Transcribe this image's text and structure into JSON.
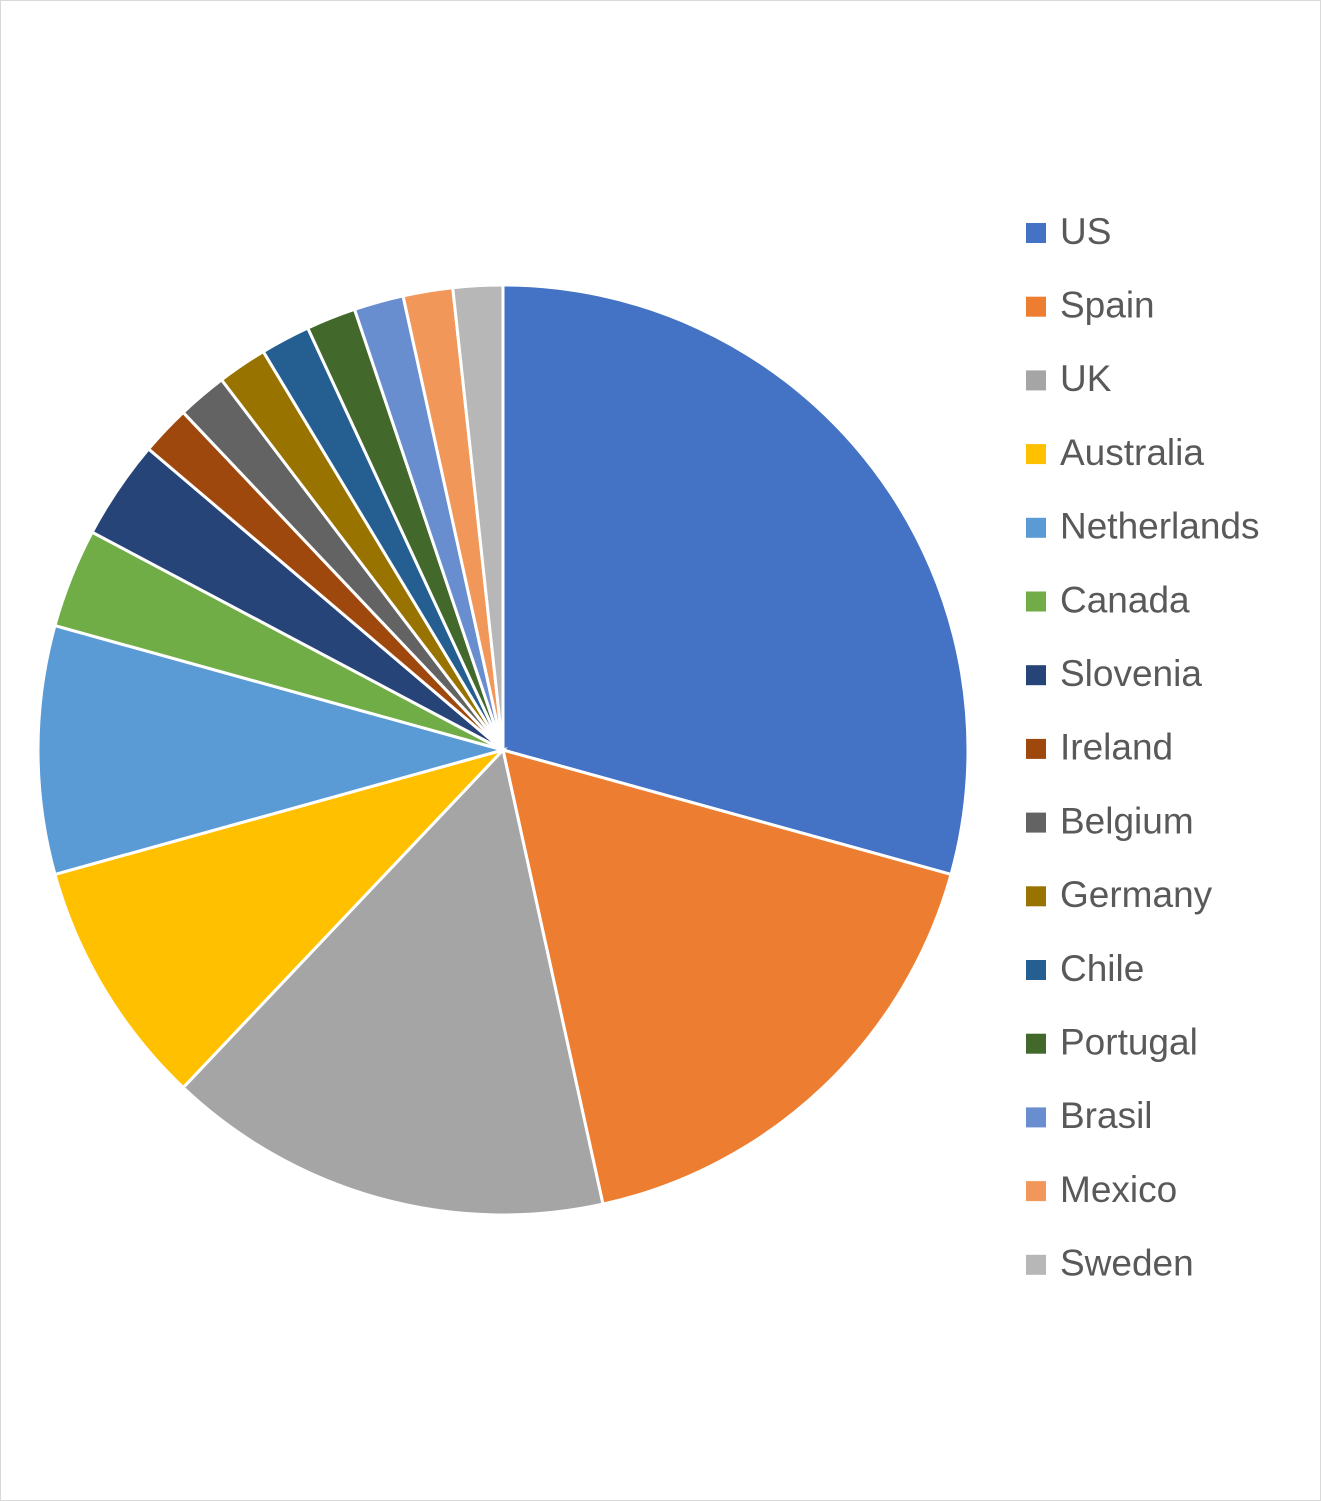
{
  "chart_data": {
    "type": "pie",
    "categories": [
      "US",
      "Spain",
      "UK",
      "Australia",
      "Netherlands",
      "Canada",
      "Slovenia",
      "Ireland",
      "Belgium",
      "Germany",
      "Chile",
      "Portugal",
      "Brasil",
      "Mexico",
      "Sweden"
    ],
    "values": [
      17,
      10,
      9,
      5,
      5,
      2,
      2,
      1,
      1,
      1,
      1,
      1,
      1,
      1,
      1
    ],
    "colors": [
      "#4472c4",
      "#ed7d31",
      "#a5a5a5",
      "#ffc000",
      "#5b9bd5",
      "#70ad47",
      "#264478",
      "#9e480e",
      "#636363",
      "#997300",
      "#255e91",
      "#43682b",
      "#698ed0",
      "#f1975a",
      "#b7b7b7"
    ],
    "legend": "right"
  }
}
